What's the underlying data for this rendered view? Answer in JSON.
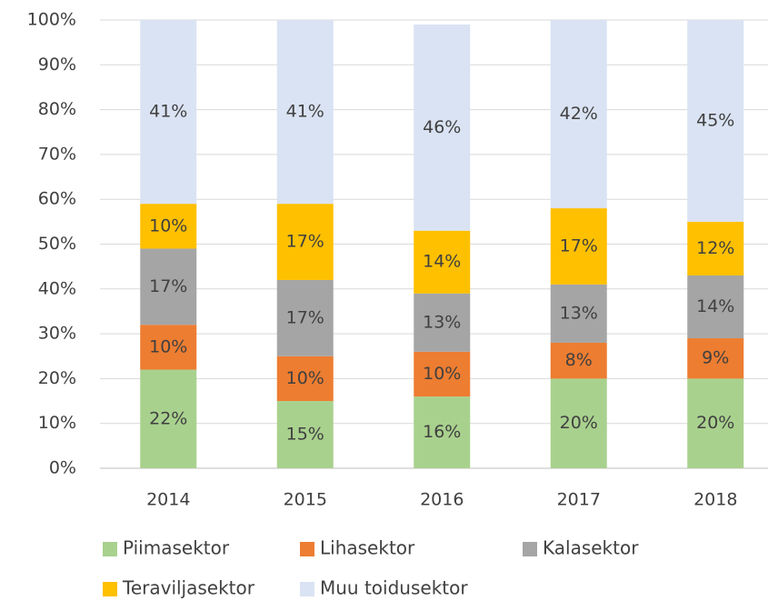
{
  "chart_data": {
    "type": "stacked_bar",
    "categories": [
      "2014",
      "2015",
      "2016",
      "2017",
      "2018"
    ],
    "series": [
      {
        "name": "Piimasektor",
        "color": "#a9d18e",
        "values": [
          22,
          15,
          16,
          20,
          20
        ],
        "value_labels": [
          "22%",
          "15%",
          "16%",
          "20%",
          "20%"
        ]
      },
      {
        "name": "Lihasektor",
        "color": "#ed7d31",
        "values": [
          10,
          10,
          10,
          8,
          9
        ],
        "value_labels": [
          "10%",
          "10%",
          "10%",
          "8%",
          "9%"
        ]
      },
      {
        "name": "Kalasektor",
        "color": "#a5a5a5",
        "values": [
          17,
          17,
          13,
          13,
          14
        ],
        "value_labels": [
          "17%",
          "17%",
          "13%",
          "13%",
          "14%"
        ]
      },
      {
        "name": "Teraviljasektor",
        "color": "#ffc000",
        "values": [
          10,
          17,
          14,
          17,
          12
        ],
        "value_labels": [
          "10%",
          "17%",
          "14%",
          "17%",
          "12%"
        ]
      },
      {
        "name": "Muu toidusektor",
        "color": "#dae3f3",
        "values": [
          41,
          41,
          46,
          42,
          45
        ],
        "value_labels": [
          "41%",
          "41%",
          "46%",
          "42%",
          "45%"
        ]
      }
    ],
    "ylim": [
      0,
      100
    ],
    "yticks": [
      {
        "value": 0,
        "label": "0%"
      },
      {
        "value": 10,
        "label": "10%"
      },
      {
        "value": 20,
        "label": "20%"
      },
      {
        "value": 30,
        "label": "30%"
      },
      {
        "value": 40,
        "label": "40%"
      },
      {
        "value": 50,
        "label": "50%"
      },
      {
        "value": 60,
        "label": "60%"
      },
      {
        "value": 70,
        "label": "70%"
      },
      {
        "value": 80,
        "label": "80%"
      },
      {
        "value": 90,
        "label": "90%"
      },
      {
        "value": 100,
        "label": "100%"
      }
    ],
    "grid": true
  }
}
